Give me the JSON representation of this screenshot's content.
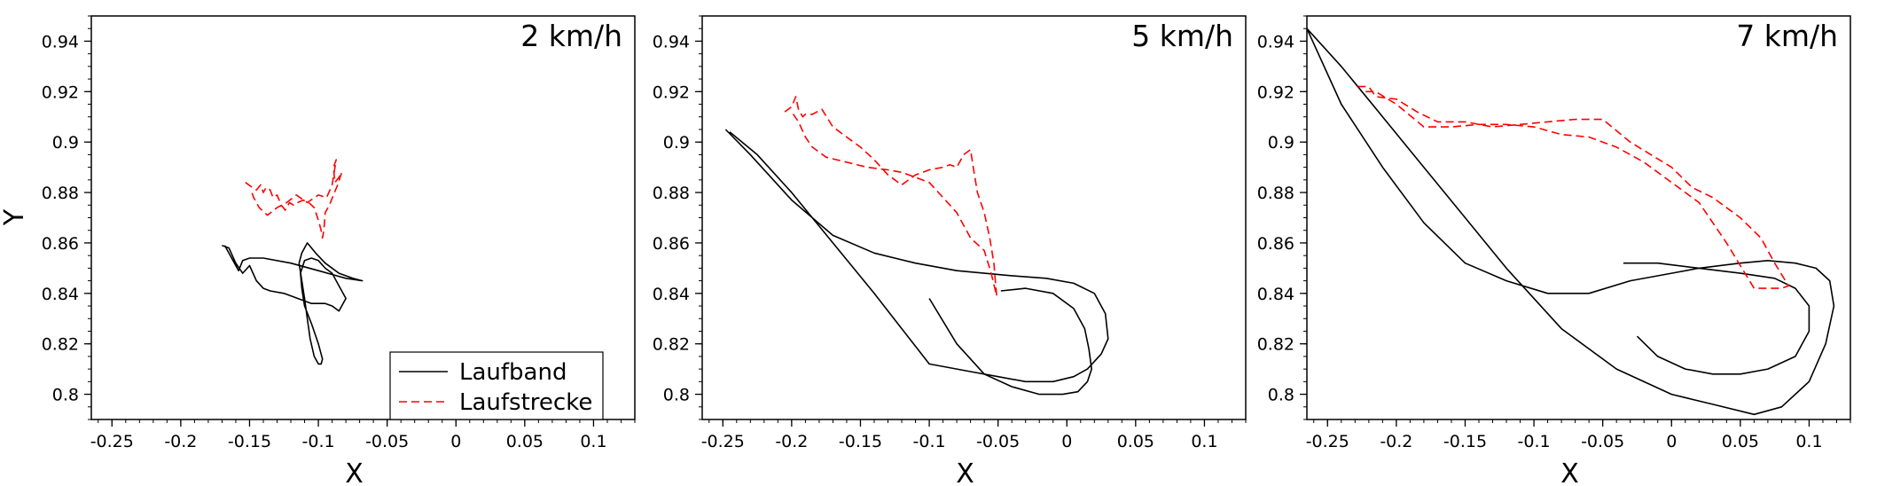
{
  "chart_data": [
    {
      "type": "line",
      "title": "2 km/h",
      "xlabel": "X",
      "ylabel": "Y",
      "xlim": [
        -0.265,
        0.13
      ],
      "ylim": [
        0.79,
        0.95
      ],
      "xticks": [
        -0.25,
        -0.2,
        -0.15,
        -0.1,
        -0.05,
        0,
        0.05,
        0.1
      ],
      "xtick_labels": [
        "-0.25",
        "-0.2",
        "-0.15",
        "-0.1",
        "-0.05",
        "0",
        "0.05",
        "0.1"
      ],
      "yticks": [
        0.8,
        0.82,
        0.84,
        0.86,
        0.88,
        0.9,
        0.92,
        0.94
      ],
      "ytick_labels": [
        "0.8",
        "0.82",
        "0.84",
        "0.86",
        "0.88",
        "0.9",
        "0.92",
        "0.94"
      ],
      "grid": false,
      "legend": {
        "placement": "lower-right",
        "entries": [
          {
            "label": "Laufband",
            "series": 0
          },
          {
            "label": "Laufstrecke",
            "series": 1
          }
        ]
      },
      "series": [
        {
          "name": "Laufband",
          "color": "#000000",
          "style": "solid",
          "x": [
            -0.17,
            -0.165,
            -0.16,
            -0.155,
            -0.15,
            -0.145,
            -0.14,
            -0.135,
            -0.125,
            -0.115,
            -0.105,
            -0.095,
            -0.09,
            -0.085,
            -0.08,
            -0.085,
            -0.09,
            -0.095,
            -0.1,
            -0.105,
            -0.11,
            -0.113,
            -0.112,
            -0.11,
            -0.105,
            -0.1,
            -0.097,
            -0.098,
            -0.1,
            -0.103,
            -0.106,
            -0.108,
            -0.11,
            -0.112,
            -0.114,
            -0.112,
            -0.108,
            -0.102,
            -0.095,
            -0.085,
            -0.075,
            -0.068,
            -0.08,
            -0.1,
            -0.12,
            -0.14,
            -0.15,
            -0.155,
            -0.158,
            -0.162,
            -0.166,
            -0.168
          ],
          "y": [
            0.859,
            0.858,
            0.852,
            0.848,
            0.851,
            0.845,
            0.842,
            0.841,
            0.84,
            0.838,
            0.836,
            0.836,
            0.835,
            0.833,
            0.838,
            0.843,
            0.848,
            0.85,
            0.853,
            0.854,
            0.853,
            0.848,
            0.842,
            0.835,
            0.828,
            0.82,
            0.814,
            0.812,
            0.812,
            0.815,
            0.822,
            0.83,
            0.838,
            0.845,
            0.852,
            0.856,
            0.86,
            0.856,
            0.852,
            0.848,
            0.846,
            0.845,
            0.846,
            0.849,
            0.852,
            0.854,
            0.854,
            0.853,
            0.849,
            0.853,
            0.857,
            0.859
          ]
        },
        {
          "name": "Laufstrecke",
          "color": "#ff0000",
          "style": "dashed",
          "x": [
            -0.153,
            -0.148,
            -0.145,
            -0.142,
            -0.14,
            -0.138,
            -0.135,
            -0.133,
            -0.13,
            -0.127,
            -0.124,
            -0.121,
            -0.118,
            -0.115,
            -0.111,
            -0.107,
            -0.103,
            -0.1,
            -0.098,
            -0.097,
            -0.096,
            -0.095,
            -0.092,
            -0.089,
            -0.086,
            -0.083,
            -0.085,
            -0.088,
            -0.089,
            -0.087,
            -0.09,
            -0.094,
            -0.1,
            -0.108,
            -0.116,
            -0.123,
            -0.13,
            -0.137,
            -0.143,
            -0.147,
            -0.149
          ],
          "y": [
            0.884,
            0.882,
            0.881,
            0.883,
            0.88,
            0.882,
            0.881,
            0.878,
            0.879,
            0.875,
            0.873,
            0.876,
            0.875,
            0.876,
            0.877,
            0.876,
            0.874,
            0.869,
            0.865,
            0.862,
            0.865,
            0.872,
            0.875,
            0.879,
            0.883,
            0.888,
            0.886,
            0.884,
            0.89,
            0.893,
            0.883,
            0.878,
            0.879,
            0.876,
            0.879,
            0.876,
            0.874,
            0.871,
            0.874,
            0.878,
            0.881
          ]
        }
      ]
    },
    {
      "type": "line",
      "title": "5 km/h",
      "xlabel": "X",
      "ylabel": "",
      "xlim": [
        -0.265,
        0.13
      ],
      "ylim": [
        0.79,
        0.95
      ],
      "xticks": [
        -0.25,
        -0.2,
        -0.15,
        -0.1,
        -0.05,
        0,
        0.05,
        0.1
      ],
      "xtick_labels": [
        "-0.25",
        "-0.2",
        "-0.15",
        "-0.1",
        "-0.05",
        "0",
        "0.05",
        "0.1"
      ],
      "yticks": [
        0.8,
        0.82,
        0.84,
        0.86,
        0.88,
        0.9,
        0.92,
        0.94
      ],
      "ytick_labels": [
        "0.8",
        "0.82",
        "0.84",
        "0.86",
        "0.88",
        "0.9",
        "0.92",
        "0.94"
      ],
      "grid": false,
      "series": [
        {
          "name": "Laufband",
          "color": "#000000",
          "style": "solid",
          "x": [
            -0.245,
            -0.225,
            -0.2,
            -0.17,
            -0.14,
            -0.1,
            -0.07,
            -0.05,
            -0.03,
            -0.01,
            0.005,
            0.015,
            0.025,
            0.03,
            0.028,
            0.02,
            0.005,
            -0.015,
            -0.04,
            -0.06,
            -0.08,
            -0.11,
            -0.14,
            -0.17,
            -0.2,
            -0.23,
            -0.248
          ],
          "y": [
            0.904,
            0.895,
            0.88,
            0.86,
            0.84,
            0.812,
            0.809,
            0.807,
            0.805,
            0.805,
            0.807,
            0.81,
            0.816,
            0.822,
            0.832,
            0.84,
            0.844,
            0.846,
            0.847,
            0.848,
            0.849,
            0.852,
            0.856,
            0.863,
            0.877,
            0.895,
            0.905
          ]
        },
        {
          "name": "Laufband",
          "color": "#000000",
          "style": "solid",
          "x": [
            -0.048,
            -0.03,
            -0.01,
            0.005,
            0.013,
            0.016,
            0.018,
            0.015,
            0.008,
            -0.003,
            -0.02,
            -0.04,
            -0.06,
            -0.08,
            -0.1
          ],
          "y": [
            0.841,
            0.842,
            0.84,
            0.834,
            0.826,
            0.818,
            0.81,
            0.805,
            0.801,
            0.8,
            0.8,
            0.803,
            0.808,
            0.82,
            0.838
          ]
        },
        {
          "name": "Laufstrecke",
          "color": "#ff0000",
          "style": "dashed",
          "x": [
            -0.205,
            -0.2,
            -0.197,
            -0.195,
            -0.192,
            -0.19,
            -0.185,
            -0.178,
            -0.17,
            -0.16,
            -0.15,
            -0.14,
            -0.13,
            -0.12,
            -0.11,
            -0.1,
            -0.09,
            -0.085,
            -0.08,
            -0.075,
            -0.07,
            -0.068,
            -0.065,
            -0.06,
            -0.056,
            -0.053,
            -0.052,
            -0.051,
            -0.055,
            -0.06,
            -0.07,
            -0.08,
            -0.09,
            -0.1,
            -0.11,
            -0.12,
            -0.13,
            -0.145,
            -0.16,
            -0.175,
            -0.185,
            -0.19,
            -0.195,
            -0.2
          ],
          "y": [
            0.912,
            0.914,
            0.918,
            0.913,
            0.91,
            0.911,
            0.911,
            0.913,
            0.906,
            0.902,
            0.898,
            0.893,
            0.887,
            0.883,
            0.887,
            0.889,
            0.89,
            0.891,
            0.89,
            0.895,
            0.897,
            0.89,
            0.88,
            0.872,
            0.862,
            0.852,
            0.845,
            0.839,
            0.848,
            0.857,
            0.862,
            0.872,
            0.878,
            0.884,
            0.886,
            0.888,
            0.889,
            0.89,
            0.892,
            0.894,
            0.898,
            0.902,
            0.908,
            0.912
          ]
        }
      ]
    },
    {
      "type": "line",
      "title": "7 km/h",
      "xlabel": "X",
      "ylabel": "",
      "xlim": [
        -0.265,
        0.13
      ],
      "ylim": [
        0.79,
        0.95
      ],
      "xticks": [
        -0.25,
        -0.2,
        -0.15,
        -0.1,
        -0.05,
        0,
        0.05,
        0.1
      ],
      "xtick_labels": [
        "-0.25",
        "-0.2",
        "-0.15",
        "-0.1",
        "-0.05",
        "0",
        "0.05",
        "0.1"
      ],
      "yticks": [
        0.8,
        0.82,
        0.84,
        0.86,
        0.88,
        0.9,
        0.92,
        0.94
      ],
      "ytick_labels": [
        "0.8",
        "0.82",
        "0.84",
        "0.86",
        "0.88",
        "0.9",
        "0.92",
        "0.94"
      ],
      "grid": false,
      "series": [
        {
          "name": "Laufband",
          "color": "#000000",
          "style": "solid",
          "x": [
            -0.265,
            -0.24,
            -0.21,
            -0.18,
            -0.15,
            -0.12,
            -0.08,
            -0.04,
            0.0,
            0.03,
            0.06,
            0.08,
            0.1,
            0.112,
            0.118,
            0.115,
            0.105,
            0.09,
            0.07,
            0.05,
            0.02,
            0.0,
            -0.03,
            -0.06,
            -0.09,
            -0.12,
            -0.15,
            -0.18,
            -0.21,
            -0.24,
            -0.265
          ],
          "y": [
            0.945,
            0.93,
            0.91,
            0.89,
            0.87,
            0.85,
            0.826,
            0.81,
            0.8,
            0.796,
            0.792,
            0.795,
            0.805,
            0.82,
            0.835,
            0.845,
            0.85,
            0.852,
            0.853,
            0.852,
            0.85,
            0.848,
            0.845,
            0.84,
            0.84,
            0.845,
            0.852,
            0.868,
            0.89,
            0.915,
            0.945
          ]
        },
        {
          "name": "Laufband",
          "color": "#000000",
          "style": "solid",
          "x": [
            -0.035,
            -0.01,
            0.02,
            0.05,
            0.075,
            0.09,
            0.1,
            0.1,
            0.09,
            0.07,
            0.05,
            0.03,
            0.01,
            -0.01,
            -0.025
          ],
          "y": [
            0.852,
            0.852,
            0.85,
            0.848,
            0.846,
            0.842,
            0.835,
            0.825,
            0.815,
            0.81,
            0.808,
            0.808,
            0.81,
            0.815,
            0.823
          ]
        },
        {
          "name": "Laufstrecke",
          "color": "#ff0000",
          "style": "dashed",
          "x": [
            -0.228,
            -0.22,
            -0.215,
            -0.2,
            -0.185,
            -0.17,
            -0.15,
            -0.13,
            -0.11,
            -0.09,
            -0.07,
            -0.05,
            -0.03,
            -0.015,
            0.0,
            0.015,
            0.03,
            0.05,
            0.065,
            0.075,
            0.085,
            0.08,
            0.06,
            0.04,
            0.02,
            0.0,
            -0.02,
            -0.04,
            -0.06,
            -0.08,
            -0.1,
            -0.12,
            -0.14,
            -0.16,
            -0.18,
            -0.2,
            -0.215,
            -0.225
          ],
          "y": [
            0.922,
            0.922,
            0.918,
            0.917,
            0.912,
            0.908,
            0.908,
            0.906,
            0.907,
            0.908,
            0.909,
            0.909,
            0.9,
            0.895,
            0.89,
            0.882,
            0.878,
            0.87,
            0.862,
            0.852,
            0.843,
            0.842,
            0.842,
            0.86,
            0.876,
            0.884,
            0.892,
            0.898,
            0.902,
            0.903,
            0.906,
            0.907,
            0.907,
            0.906,
            0.906,
            0.915,
            0.92,
            0.92
          ]
        }
      ]
    }
  ]
}
